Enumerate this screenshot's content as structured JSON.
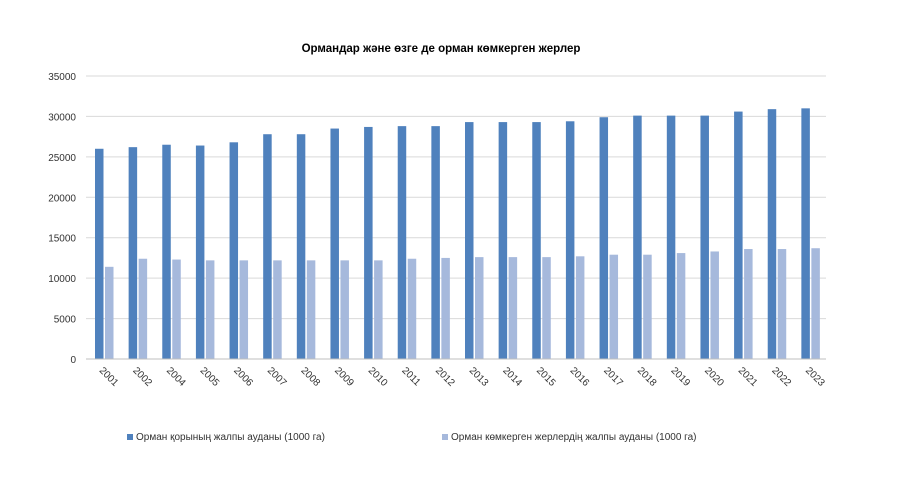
{
  "chart_data": {
    "type": "bar",
    "title": "Ормандар және өзге де орман көмкерген жерлер",
    "xlabel": "",
    "ylabel": "",
    "ylim": [
      0,
      35000
    ],
    "yticks": [
      0,
      5000,
      10000,
      15000,
      20000,
      25000,
      30000,
      35000
    ],
    "ytick_labels": [
      "0",
      "5000",
      "10000",
      "15000",
      "20000",
      "25000",
      "30000",
      "35000"
    ],
    "grid": true,
    "legend_position": "bottom",
    "categories": [
      "2001",
      "2002",
      "2004",
      "2005",
      "2006",
      "2007",
      "2008",
      "2009",
      "2010",
      "2011",
      "2012",
      "2013",
      "2014",
      "2015",
      "2016",
      "2017",
      "2018",
      "2019",
      "2020",
      "2021",
      "2022",
      "2023"
    ],
    "series": [
      {
        "name": "Орман қорының жалпы ауданы (1000 га)",
        "color": "#4f81bd",
        "values": [
          26000,
          26200,
          26500,
          26400,
          26800,
          27800,
          27800,
          28500,
          28700,
          28800,
          28800,
          29300,
          29300,
          29300,
          29400,
          29900,
          30100,
          30100,
          30100,
          30600,
          30900,
          31000
        ]
      },
      {
        "name": "Орман көмкерген жерлердің жалпы ауданы (1000 га)",
        "color": "#a6b9dc",
        "values": [
          11400,
          12400,
          12300,
          12200,
          12200,
          12200,
          12200,
          12200,
          12200,
          12400,
          12500,
          12600,
          12600,
          12600,
          12700,
          12900,
          12900,
          13100,
          13300,
          13600,
          13600,
          13700
        ]
      }
    ]
  }
}
